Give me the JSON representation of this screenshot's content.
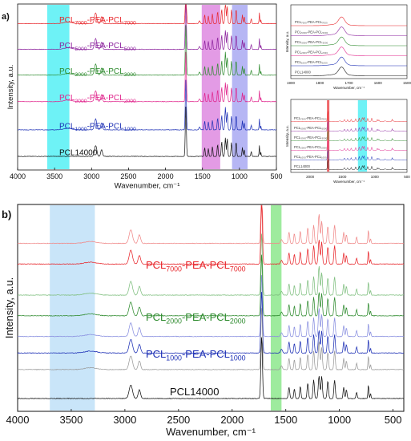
{
  "panel_a_label": "a)",
  "panel_b_label": "b)",
  "chart_data": [
    {
      "id": "a-main",
      "type": "line",
      "xlabel": "Wavenumber, cm⁻¹",
      "ylabel": "Intensity, a.u.",
      "xlim": [
        4000,
        500
      ],
      "xticks": [
        4000,
        3500,
        3000,
        2500,
        2000,
        1500,
        1000,
        500
      ],
      "grid": false,
      "bands": [
        {
          "from": 3600,
          "to": 3300,
          "color": "#55f0f4"
        },
        {
          "from": 1510,
          "to": 1260,
          "color": "#de8ae0"
        },
        {
          "from": 1100,
          "to": 890,
          "color": "#a9a9f2"
        }
      ],
      "series": [
        {
          "label": "PCL",
          "sub": "7000",
          "mid": "-PEA-PCL",
          "sub2": "7000",
          "color": "#e8262b",
          "offset": 0.87
        },
        {
          "label": "PCL",
          "sub": "5000",
          "mid": "-PEA-PCL",
          "sub2": "5000",
          "color": "#8a1f9c",
          "offset": 0.715
        },
        {
          "label": "PCL",
          "sub": "3000",
          "mid": "-PEA-PCL",
          "sub2": "3000",
          "color": "#2e8b2e",
          "offset": 0.56
        },
        {
          "label": "PCL",
          "sub": "2000",
          "mid": "-PEA-PCL",
          "sub2": "2000",
          "color": "#e0218a",
          "offset": 0.4
        },
        {
          "label": "PCL",
          "sub": "1000",
          "mid": "-PEA-PCL",
          "sub2": "1000",
          "color": "#1c2fb5",
          "offset": 0.23
        },
        {
          "label": "PCL14000",
          "sub": "",
          "mid": "",
          "sub2": "",
          "color": "#111111",
          "offset": 0.07
        }
      ]
    },
    {
      "id": "a-inset-top",
      "type": "line",
      "xlabel": "Wavenumber, cm⁻¹",
      "ylabel": "Intensity, a.u.",
      "xlim": [
        1900,
        1500
      ],
      "xticks": [
        1900,
        1800,
        1700,
        1600,
        1500
      ],
      "series_labels": [
        "PCL₇₀₀₀-PEA-PCL₇₀₀₀",
        "PCL₅₀₀₀-PEA-PCL₅₀₀₀",
        "PCL₃₀₀₀-PEA-PCL₃₀₀₀",
        "PCL₂₀₀₀-PEA-PCL₂₀₀₀",
        "PCL₁₀₀₀-PEA-PCL₁₀₀₀",
        "PCL14000"
      ]
    },
    {
      "id": "a-inset-bottom",
      "type": "line",
      "xlabel": "Wavenumber, cm⁻¹",
      "ylabel": "Intensity, a.u.",
      "xlim": [
        2300,
        500
      ],
      "xticks": [
        2000,
        1500,
        1000,
        500
      ],
      "series_labels": [
        "PCL₇₀₀₀-PEA-PCL₇₀₀₀",
        "PCL₅₀₀₀-PEA-PCL₅₀₀₀",
        "PCL₃₀₀₀-PEA-PCL₃₀₀₀",
        "PCL₂₀₀₀-PEA-PCL₂₀₀₀",
        "PCL₁₀₀₀-PEA-PCL₁₀₀₀",
        "PCL14000"
      ]
    },
    {
      "id": "b-main",
      "type": "line",
      "xlabel": "Wavenumber, cm⁻¹",
      "ylabel": "Intensity, a.u.",
      "xlim": [
        4000,
        400
      ],
      "xticks": [
        4000,
        3500,
        3000,
        2500,
        2000,
        1500,
        1000,
        500
      ],
      "grid": false,
      "bands": [
        {
          "from": 3700,
          "to": 3280,
          "color": "#bfe1f8"
        },
        {
          "from": 1640,
          "to": 1540,
          "color": "#8de88d"
        }
      ],
      "series": [
        {
          "color": "#f08a8a",
          "offset": 0.8
        },
        {
          "color": "#e8262b",
          "offset": 0.7
        },
        {
          "color": "#7fbf7f",
          "offset": 0.55
        },
        {
          "color": "#2e8b2e",
          "offset": 0.45
        },
        {
          "color": "#8a90e0",
          "offset": 0.35
        },
        {
          "color": "#1c2fb5",
          "offset": 0.27
        },
        {
          "color": "#9a9a9a",
          "offset": 0.19
        },
        {
          "color": "#111111",
          "offset": 0.05
        }
      ],
      "annotations": [
        {
          "label": "PCL",
          "sub": "7000",
          "mid": "-PEA-PCL",
          "sub2": "7000",
          "color": "#e8262b"
        },
        {
          "label": "PCL",
          "sub": "2000",
          "mid": "-PEA-PCL",
          "sub2": "2000",
          "color": "#2e8b2e"
        },
        {
          "label": "PCL",
          "sub": "1000",
          "mid": "-PEA-PCL",
          "sub2": "1000",
          "color": "#1c2fb5"
        },
        {
          "label": "PCL14000",
          "sub": "",
          "mid": "",
          "sub2": "",
          "color": "#111111"
        }
      ]
    }
  ]
}
